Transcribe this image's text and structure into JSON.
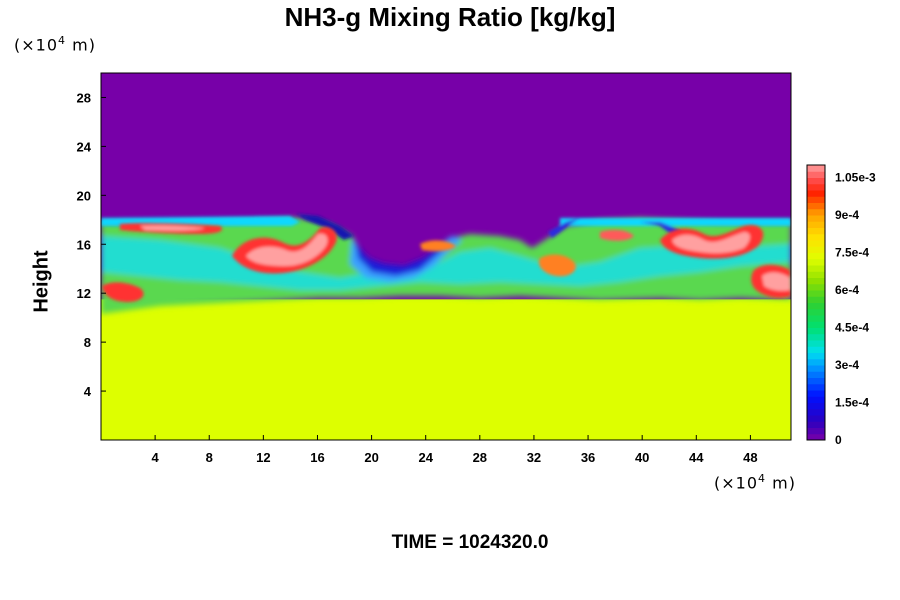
{
  "chart_data": {
    "type": "heatmap",
    "title": "NH3-g Mixing Ratio [kg/kg]",
    "ylabel": "Height",
    "xlabel": "",
    "x_unit": {
      "prefix": "(×10",
      "exp": "4",
      "suffix": " m)"
    },
    "y_unit": {
      "prefix": "(×10",
      "exp": "4",
      "suffix": " m)"
    },
    "xlim": [
      0,
      51
    ],
    "ylim": [
      0,
      30
    ],
    "x_ticks": [
      4,
      8,
      12,
      16,
      20,
      24,
      28,
      32,
      36,
      40,
      44,
      48
    ],
    "y_ticks": [
      4,
      8,
      12,
      16,
      20,
      24,
      28
    ],
    "colorbar": {
      "range": [
        0,
        0.0011
      ],
      "tick_values": [
        0,
        0.00015,
        0.0003,
        0.00045,
        0.0006,
        0.00075,
        0.0009,
        0.00105
      ],
      "tick_labels": [
        "0",
        "1.5e-4",
        "3e-4",
        "4.5e-4",
        "6e-4",
        "7.5e-4",
        "9e-4",
        "1.05e-3"
      ]
    },
    "field_summary": {
      "upper_value": 0,
      "lower_value": 0.00078,
      "lower_layer_top_height": 11.5,
      "mixed_layer_top_height": 18.3
    },
    "colors": {
      "upper": "#7700a8",
      "lower": "#ddff00"
    }
  },
  "time_label": "TIME = 1024320.0"
}
